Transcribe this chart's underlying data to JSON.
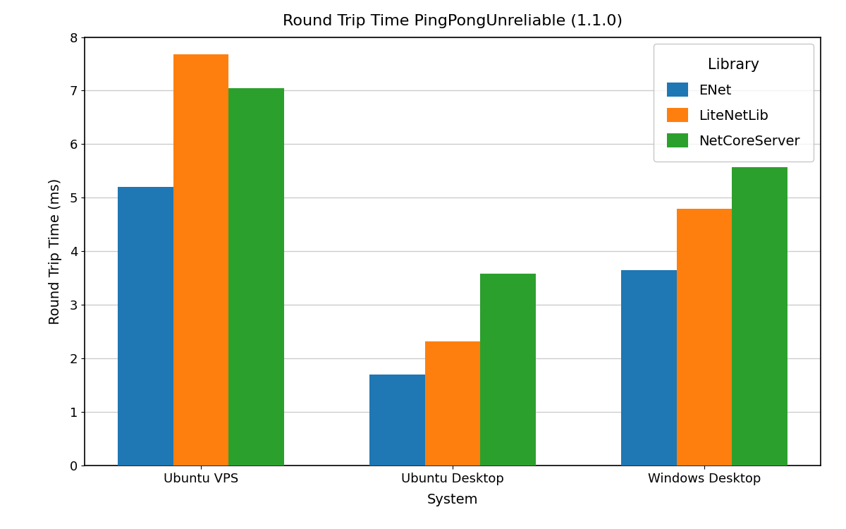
{
  "title": "Round Trip Time PingPongUnreliable (1.1.0)",
  "xlabel": "System",
  "ylabel": "Round Trip Time (ms)",
  "categories": [
    "Ubuntu VPS",
    "Ubuntu Desktop",
    "Windows Desktop"
  ],
  "libraries": [
    "ENet",
    "LiteNetLib",
    "NetCoreServer"
  ],
  "values": {
    "ENet": [
      5.2,
      1.7,
      3.65
    ],
    "LiteNetLib": [
      7.68,
      2.32,
      4.8
    ],
    "NetCoreServer": [
      7.04,
      3.58,
      5.57
    ]
  },
  "colors": {
    "ENet": "#1f77b4",
    "LiteNetLib": "#ff7f0e",
    "NetCoreServer": "#2ca02c"
  },
  "ylim": [
    0,
    8
  ],
  "yticks": [
    0,
    1,
    2,
    3,
    4,
    5,
    6,
    7,
    8
  ],
  "legend_title": "Library",
  "legend_loc": "upper right",
  "bar_width": 0.22,
  "title_fontsize": 16,
  "axis_label_fontsize": 14,
  "tick_fontsize": 13,
  "legend_fontsize": 14,
  "legend_title_fontsize": 15,
  "background_color": "#ffffff",
  "grid_color": "#cccccc",
  "figsize": [
    12.0,
    7.5
  ],
  "dpi": 100
}
